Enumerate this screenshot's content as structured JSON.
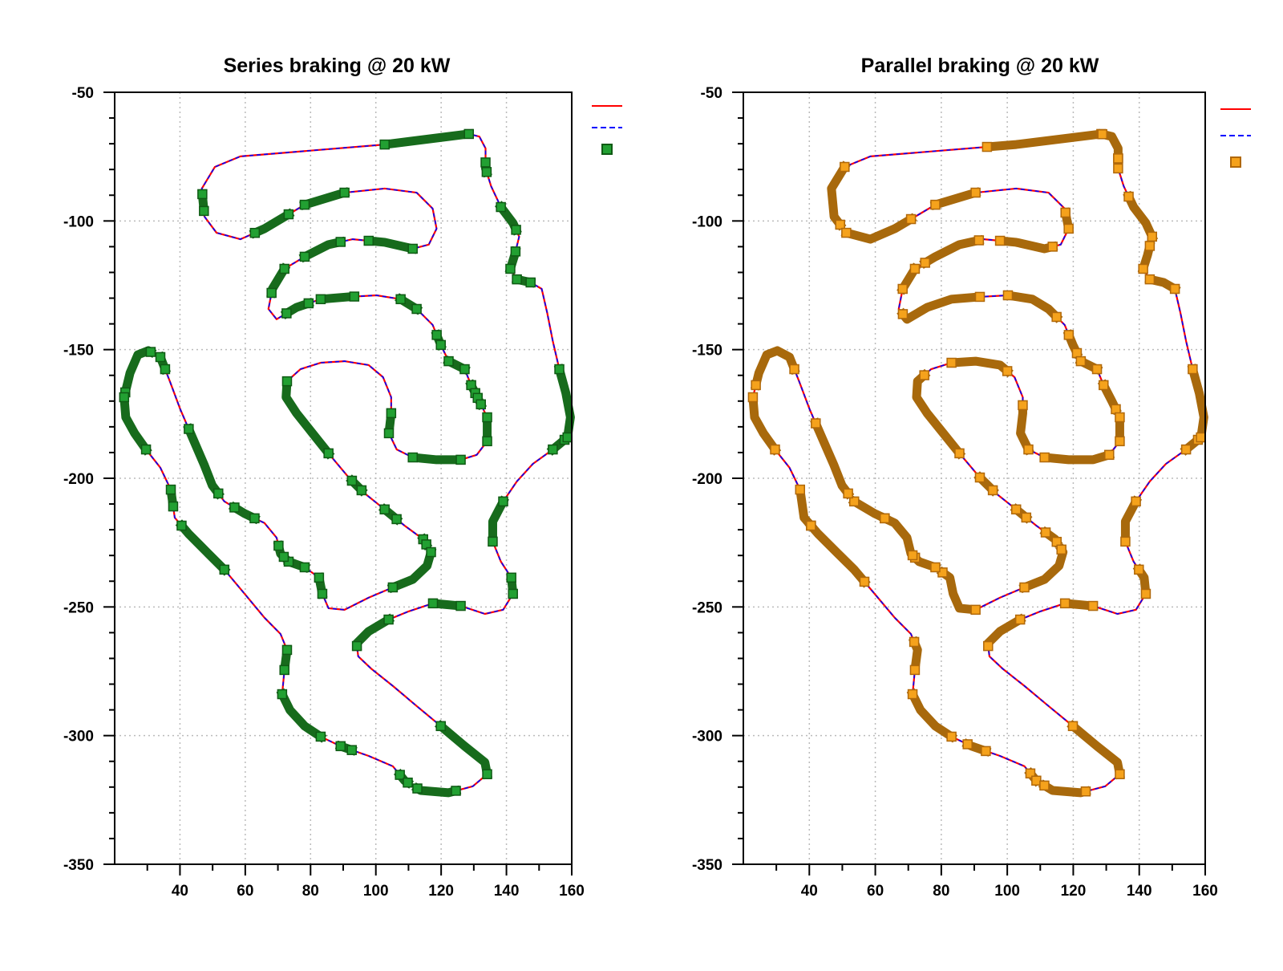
{
  "track": {
    "x": [
      128.5,
      102.7,
      58.5,
      50.7,
      46.7,
      47.5,
      51.2,
      58.5,
      65.9,
      78.2,
      90.4,
      102.7,
      112.5,
      117.4,
      118.6,
      116.2,
      111.3,
      102.7,
      92.9,
      85.5,
      78.2,
      72,
      68.3,
      67.1,
      69.6,
      75.7,
      83.1,
      91.7,
      100.2,
      107.6,
      112.5,
      117.4,
      119.9,
      122.3,
      127.2,
      129.2,
      131.7,
      134.1,
      134.1,
      130.9,
      126,
      118.6,
      111.3,
      106.4,
      104,
      104.7,
      104.7,
      102.2,
      97.8,
      90.4,
      83.1,
      76.9,
      72.8,
      72.5,
      75.7,
      80.6,
      85.5,
      91.7,
      96.6,
      102.7,
      108.8,
      114.5,
      116.9,
      115.7,
      111.3,
      105.2,
      97.8,
      90.4,
      85.5,
      83.6,
      82.6,
      78.2,
      73.3,
      70.8,
      69.6,
      65.9,
      59.8,
      53.6,
      49.9,
      47.5,
      43.8,
      40.1,
      36.9,
      34,
      30.3,
      27.1,
      24.7,
      22.9,
      23.4,
      26.1,
      29.6,
      34,
      37.2,
      38.4,
      42.6,
      48.7,
      53.6,
      59.8,
      65.9,
      70.8,
      72.8,
      72,
      71.3,
      73.7,
      78.2,
      83.1,
      89.2,
      97.8,
      105.2,
      108.8,
      113.7,
      122.3,
      129.7,
      134.1,
      133.4,
      127.2,
      119.9,
      112.5,
      105.2,
      98.5,
      94.6,
      94.1,
      97.8,
      103.9,
      110.1,
      117.5,
      126,
      133.4,
      139,
      142,
      141.5,
      138.3,
      135.8,
      135.8,
      139,
      143.2,
      148.1,
      154.2,
      158.7,
      159.6,
      158.2,
      156.2,
      154.2,
      152.5,
      150.8,
      147.4,
      143.2,
      141.2,
      142.5,
      143.9,
      142,
      138.3,
      135.3,
      133.6,
      133.6,
      131.7
    ],
    "y": [
      -66.2,
      -70.3,
      -74.9,
      -79,
      -87.4,
      -98.3,
      -104.6,
      -107.1,
      -103,
      -93.7,
      -89,
      -87.4,
      -89,
      -95.2,
      -103,
      -109.2,
      -110.8,
      -108.3,
      -107.1,
      -109.2,
      -113.9,
      -118.6,
      -126.4,
      -134.2,
      -138.2,
      -133.6,
      -130.4,
      -129.5,
      -128.9,
      -130.4,
      -134.2,
      -140.4,
      -148.2,
      -154.5,
      -157.6,
      -163.8,
      -170,
      -176.3,
      -185.6,
      -190.9,
      -192.8,
      -192.8,
      -191.9,
      -188.8,
      -182.5,
      -174.7,
      -168.5,
      -160.7,
      -156,
      -154.5,
      -155.1,
      -157.6,
      -162.3,
      -168.5,
      -174.7,
      -182.5,
      -190.3,
      -199.7,
      -205.9,
      -212.1,
      -218.4,
      -223.7,
      -228.7,
      -234,
      -239.3,
      -242.4,
      -246.4,
      -251.1,
      -250.5,
      -244.9,
      -238.6,
      -234.6,
      -232.4,
      -229.3,
      -223.1,
      -217.4,
      -213.7,
      -209,
      -202.8,
      -195,
      -184.1,
      -173.2,
      -162.3,
      -152.9,
      -150.4,
      -152,
      -159.1,
      -168.5,
      -176.3,
      -182.5,
      -188.8,
      -195.9,
      -204.4,
      -215.3,
      -221.5,
      -229.3,
      -235.5,
      -244.9,
      -254.2,
      -260.5,
      -266.7,
      -274.5,
      -283.9,
      -290.1,
      -296.3,
      -300.4,
      -304.1,
      -307.9,
      -311.9,
      -317.5,
      -321.3,
      -322.2,
      -319.7,
      -315,
      -310.4,
      -304.1,
      -296.3,
      -288.5,
      -280.7,
      -273.9,
      -269.2,
      -264.2,
      -259.5,
      -254.9,
      -251.7,
      -248.6,
      -249.6,
      -252.7,
      -251.1,
      -244.9,
      -238.6,
      -232.4,
      -224.6,
      -216.8,
      -209,
      -201.2,
      -194.4,
      -188.8,
      -184.1,
      -176.3,
      -166.9,
      -157.6,
      -146.7,
      -135.8,
      -126.4,
      -123.9,
      -122.7,
      -118.6,
      -113.3,
      -106.1,
      -100.8,
      -94.6,
      -86.5,
      -79.6,
      -71.8,
      -67.2
    ]
  },
  "chart_data": [
    {
      "type": "line",
      "title": "Series braking @ 20 kW",
      "xlabel": "",
      "ylabel": "",
      "xlim": [
        20,
        160
      ],
      "ylim": [
        -350,
        -50
      ],
      "xticks": [
        40,
        60,
        80,
        100,
        120,
        140,
        160
      ],
      "yticks": [
        -50,
        -100,
        -150,
        -200,
        -250,
        -300,
        -350
      ],
      "grid": true,
      "legend": "top-right (outside), no labels",
      "colors": {
        "track": "#ff0000",
        "track_dash": "#0000ff",
        "braking": "#176b1c",
        "marker_fill": "#22a032",
        "marker_edge": "#0f5a14"
      },
      "braking_segments": [
        [
          0,
          1
        ],
        [
          4.2,
          4.8
        ],
        [
          7.6,
          8.6
        ],
        [
          9,
          10
        ],
        [
          16,
          17.5
        ],
        [
          18.5,
          20
        ],
        [
          21,
          22.2
        ],
        [
          24.5,
          25.5
        ],
        [
          26,
          27.2
        ],
        [
          29,
          30
        ],
        [
          31.5,
          32
        ],
        [
          33,
          34
        ],
        [
          35,
          35.5
        ],
        [
          35.8,
          36.2
        ],
        [
          37,
          38
        ],
        [
          40,
          42
        ],
        [
          44,
          45
        ],
        [
          52,
          56
        ],
        [
          57.2,
          57.8
        ],
        [
          59,
          59.6
        ],
        [
          61,
          61.4
        ],
        [
          62,
          65
        ],
        [
          69,
          70
        ],
        [
          71,
          72
        ],
        [
          72.6,
          73.5
        ],
        [
          75.5,
          76.5
        ],
        [
          77.5,
          80.3
        ],
        [
          82.5,
          83
        ],
        [
          83.8,
          86.8
        ],
        [
          87,
          90
        ],
        [
          92,
          92.6
        ],
        [
          93.5,
          96
        ],
        [
          100,
          101
        ],
        [
          102,
          105
        ],
        [
          106,
          106.4
        ],
        [
          108.6,
          109.2
        ],
        [
          109.8,
          111.3
        ],
        [
          113,
          116
        ],
        [
          120.8,
          123
        ],
        [
          125,
          126
        ],
        [
          129,
          130
        ],
        [
          132,
          134
        ],
        [
          137,
          137.8
        ],
        [
          138,
          141
        ],
        [
          145,
          146
        ],
        [
          147,
          148.2
        ],
        [
          149.5,
          151
        ],
        [
          152.8,
          153.3
        ]
      ]
    },
    {
      "type": "line",
      "title": "Parallel braking @ 20 kW",
      "xlabel": "",
      "ylabel": "",
      "xlim": [
        20,
        160
      ],
      "ylim": [
        -350,
        -50
      ],
      "xticks": [
        40,
        60,
        80,
        100,
        120,
        140,
        160
      ],
      "yticks": [
        -50,
        -100,
        -150,
        -200,
        -250,
        -300,
        -350
      ],
      "grid": true,
      "legend": "top-right (outside), no labels",
      "colors": {
        "track": "#ff0000",
        "track_dash": "#0000ff",
        "braking": "#a8690c",
        "marker_fill": "#f5a21c",
        "marker_edge": "#b0680a"
      },
      "braking_segments": [
        [
          0,
          1.2
        ],
        [
          153.5,
          155.9
        ],
        [
          3,
          5.5
        ],
        [
          6,
          8.4
        ],
        [
          9,
          10
        ],
        [
          13.2,
          14
        ],
        [
          15.5,
          17.5
        ],
        [
          18.2,
          20.5
        ],
        [
          21,
          22
        ],
        [
          23.5,
          27
        ],
        [
          28,
          30.5
        ],
        [
          31.5,
          32.5
        ],
        [
          33,
          34
        ],
        [
          35,
          36.5
        ],
        [
          37,
          38
        ],
        [
          39,
          42
        ],
        [
          43,
          45.5
        ],
        [
          47.5,
          50
        ],
        [
          51.5,
          56
        ],
        [
          57,
          57.8
        ],
        [
          59,
          59.5
        ],
        [
          60.5,
          61.2
        ],
        [
          61.8,
          65
        ],
        [
          67,
          70.5
        ],
        [
          71,
          72.5
        ],
        [
          72.8,
          75.5
        ],
        [
          75.5,
          77
        ],
        [
          77.5,
          80.5
        ],
        [
          82.5,
          86.5
        ],
        [
          87,
          90
        ],
        [
          92,
          93.5
        ],
        [
          93.5,
          96.5
        ],
        [
          99.5,
          101
        ],
        [
          102,
          105
        ],
        [
          105.8,
          106.5
        ],
        [
          108.5,
          109
        ],
        [
          109.5,
          111.2
        ],
        [
          113,
          116
        ],
        [
          120.8,
          123
        ],
        [
          125,
          126
        ],
        [
          129,
          130.5
        ],
        [
          132,
          134
        ],
        [
          137,
          137.8
        ],
        [
          138,
          141
        ],
        [
          144,
          146
        ],
        [
          147,
          148.5
        ],
        [
          149,
          151.5
        ],
        [
          153,
          153.5
        ]
      ]
    }
  ]
}
